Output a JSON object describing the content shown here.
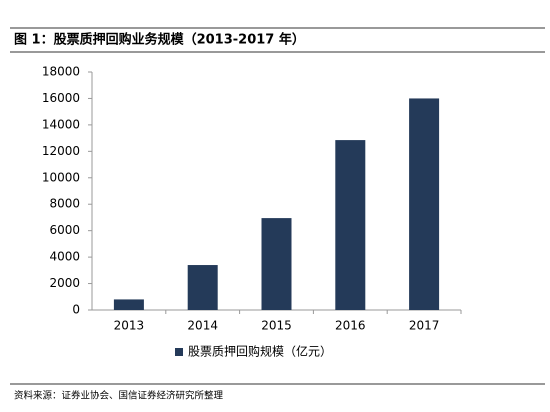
{
  "chart_data": {
    "type": "bar",
    "title": "图 1：股票质押回购业务规模（2013-2017 年）",
    "source": "资料来源：证券业协会、国信证券经济研究所整理",
    "categories": [
      "2013",
      "2014",
      "2015",
      "2016",
      "2017"
    ],
    "series": [
      {
        "name": "股票质押回购规模（亿元）",
        "color": "#243a59",
        "values": [
          800,
          3400,
          6950,
          12850,
          16000
        ]
      }
    ],
    "ylim": [
      0,
      18000
    ],
    "yticks": [
      0,
      2000,
      4000,
      6000,
      8000,
      10000,
      12000,
      14000,
      16000,
      18000
    ],
    "grid": false
  }
}
